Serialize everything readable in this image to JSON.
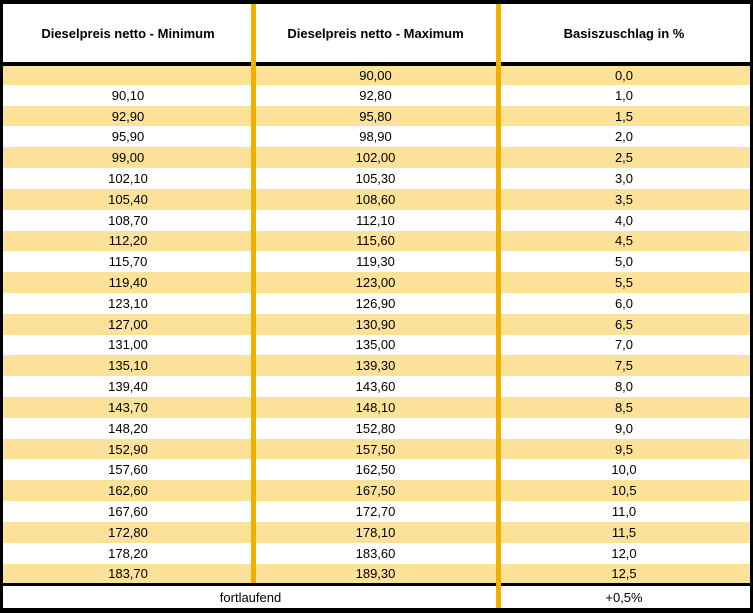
{
  "table": {
    "headers": [
      "Dieselpreis netto - Minimum",
      "Dieselpreis netto - Maximum",
      "Basiszuschlag in %"
    ],
    "rows": [
      {
        "min": "",
        "max": "90,00",
        "pct": "0,0"
      },
      {
        "min": "90,10",
        "max": "92,80",
        "pct": "1,0"
      },
      {
        "min": "92,90",
        "max": "95,80",
        "pct": "1,5"
      },
      {
        "min": "95,90",
        "max": "98,90",
        "pct": "2,0"
      },
      {
        "min": "99,00",
        "max": "102,00",
        "pct": "2,5"
      },
      {
        "min": "102,10",
        "max": "105,30",
        "pct": "3,0"
      },
      {
        "min": "105,40",
        "max": "108,60",
        "pct": "3,5"
      },
      {
        "min": "108,70",
        "max": "112,10",
        "pct": "4,0"
      },
      {
        "min": "112,20",
        "max": "115,60",
        "pct": "4,5"
      },
      {
        "min": "115,70",
        "max": "119,30",
        "pct": "5,0"
      },
      {
        "min": "119,40",
        "max": "123,00",
        "pct": "5,5"
      },
      {
        "min": "123,10",
        "max": "126,90",
        "pct": "6,0"
      },
      {
        "min": "127,00",
        "max": "130,90",
        "pct": "6,5"
      },
      {
        "min": "131,00",
        "max": "135,00",
        "pct": "7,0"
      },
      {
        "min": "135,10",
        "max": "139,30",
        "pct": "7,5"
      },
      {
        "min": "139,40",
        "max": "143,60",
        "pct": "8,0"
      },
      {
        "min": "143,70",
        "max": "148,10",
        "pct": "8,5"
      },
      {
        "min": "148,20",
        "max": "152,80",
        "pct": "9,0"
      },
      {
        "min": "152,90",
        "max": "157,50",
        "pct": "9,5"
      },
      {
        "min": "157,60",
        "max": "162,50",
        "pct": "10,0"
      },
      {
        "min": "162,60",
        "max": "167,50",
        "pct": "10,5"
      },
      {
        "min": "167,60",
        "max": "172,70",
        "pct": "11,0"
      },
      {
        "min": "172,80",
        "max": "178,10",
        "pct": "11,5"
      },
      {
        "min": "178,20",
        "max": "183,60",
        "pct": "12,0"
      },
      {
        "min": "183,70",
        "max": "189,30",
        "pct": "12,5"
      }
    ],
    "footer": {
      "label": "fortlaufend",
      "pct": "+0,5%"
    }
  },
  "colors": {
    "row_highlight": "#FBE298",
    "column_separator": "#F0B000",
    "border": "#000000",
    "background": "#FFFFFF"
  }
}
